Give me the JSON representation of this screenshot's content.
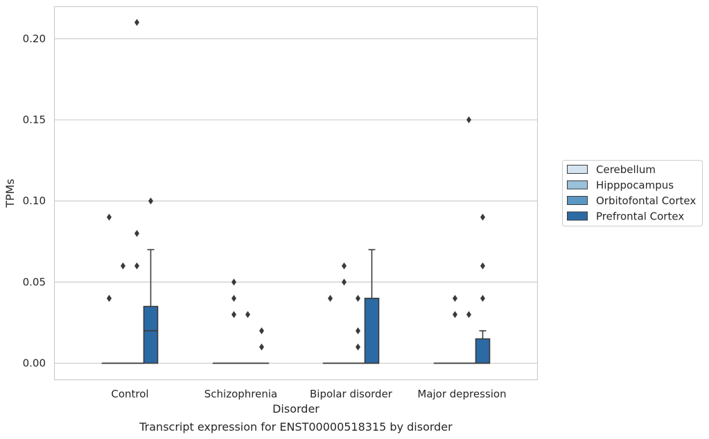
{
  "chart_data": {
    "type": "box",
    "caption": "Transcript expression for ENST00000518315 by disorder",
    "xlabel": "Disorder",
    "ylabel": "TPMs",
    "ylim": [
      -0.01,
      0.22
    ],
    "yticks": [
      "0.00",
      "0.05",
      "0.10",
      "0.15",
      "0.20"
    ],
    "ytick_values": [
      0.0,
      0.05,
      0.1,
      0.15,
      0.2
    ],
    "grid": true,
    "legend_position": "right",
    "categories": [
      "Control",
      "Schizophrenia",
      "Bipolar disorder",
      "Major depression"
    ],
    "series": [
      {
        "name": "Cerebellum",
        "color": "#d5e3f0",
        "boxes": [
          {
            "min": 0,
            "q1": 0,
            "median": 0,
            "q3": 0,
            "max": 0,
            "outliers": [
              0.04,
              0.04,
              0.09
            ]
          },
          {
            "min": 0,
            "q1": 0,
            "median": 0,
            "q3": 0,
            "max": 0,
            "outliers": []
          },
          {
            "min": 0,
            "q1": 0,
            "median": 0,
            "q3": 0,
            "max": 0,
            "outliers": [
              0.04
            ]
          },
          {
            "min": 0,
            "q1": 0,
            "median": 0,
            "q3": 0,
            "max": 0,
            "outliers": []
          }
        ]
      },
      {
        "name": "Hipppocampus",
        "color": "#9ac0da",
        "boxes": [
          {
            "min": 0,
            "q1": 0,
            "median": 0,
            "q3": 0,
            "max": 0,
            "outliers": [
              0.06
            ]
          },
          {
            "min": 0,
            "q1": 0,
            "median": 0,
            "q3": 0,
            "max": 0,
            "outliers": [
              0.03,
              0.04,
              0.05
            ]
          },
          {
            "min": 0,
            "q1": 0,
            "median": 0,
            "q3": 0,
            "max": 0,
            "outliers": [
              0.05,
              0.06
            ]
          },
          {
            "min": 0,
            "q1": 0,
            "median": 0,
            "q3": 0,
            "max": 0,
            "outliers": [
              0.03,
              0.04
            ]
          }
        ]
      },
      {
        "name": "Orbitofontal Cortex",
        "color": "#5a97c4",
        "boxes": [
          {
            "min": 0,
            "q1": 0,
            "median": 0,
            "q3": 0,
            "max": 0,
            "outliers": [
              0.06,
              0.08,
              0.21
            ]
          },
          {
            "min": 0,
            "q1": 0,
            "median": 0,
            "q3": 0,
            "max": 0,
            "outliers": [
              0.03
            ]
          },
          {
            "min": 0,
            "q1": 0,
            "median": 0,
            "q3": 0,
            "max": 0,
            "outliers": [
              0.01,
              0.02,
              0.04
            ]
          },
          {
            "min": 0,
            "q1": 0,
            "median": 0,
            "q3": 0,
            "max": 0,
            "outliers": [
              0.03,
              0.15
            ]
          }
        ]
      },
      {
        "name": "Prefrontal Cortex",
        "color": "#2c6aa5",
        "boxes": [
          {
            "min": 0,
            "q1": 0,
            "median": 0.02,
            "q3": 0.035,
            "max": 0.07,
            "outliers": [
              0.1
            ]
          },
          {
            "min": 0,
            "q1": 0,
            "median": 0,
            "q3": 0,
            "max": 0,
            "outliers": [
              0.01,
              0.02
            ]
          },
          {
            "min": 0,
            "q1": 0,
            "median": 0,
            "q3": 0.04,
            "max": 0.07,
            "outliers": []
          },
          {
            "min": 0,
            "q1": 0,
            "median": 0,
            "q3": 0.015,
            "max": 0.02,
            "outliers": [
              0.04,
              0.06,
              0.09
            ]
          }
        ]
      }
    ]
  }
}
